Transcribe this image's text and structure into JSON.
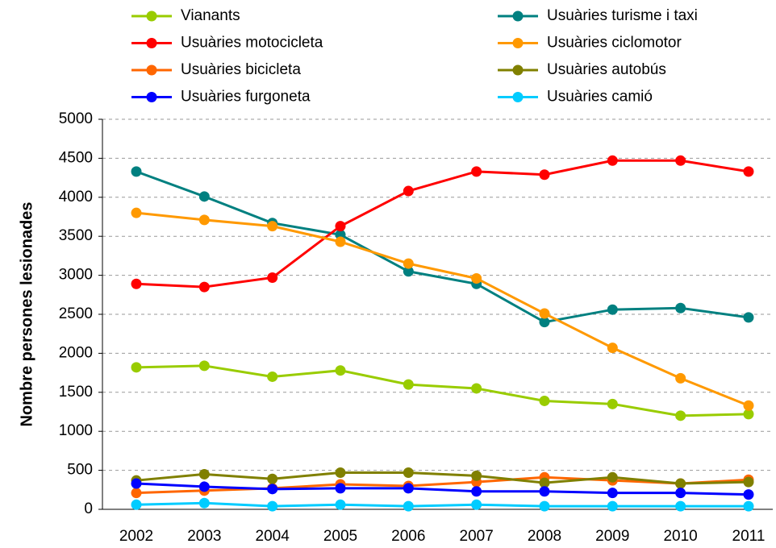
{
  "chart_data": {
    "type": "line",
    "y_label": "Nombre persones lesionades",
    "categories": [
      "2002",
      "2003",
      "2004",
      "2005",
      "2006",
      "2007",
      "2008",
      "2009",
      "2010",
      "2011"
    ],
    "series": [
      {
        "name": "Vianants",
        "color": "#99cc00",
        "values": [
          1820,
          1840,
          1700,
          1780,
          1600,
          1550,
          1390,
          1350,
          1200,
          1220
        ]
      },
      {
        "name": "Usuàries turisme i taxi",
        "color": "#008080",
        "values": [
          4330,
          4010,
          3670,
          3520,
          3050,
          2890,
          2400,
          2560,
          2580,
          2460
        ]
      },
      {
        "name": "Usuàries motocicleta",
        "color": "#ff0000",
        "values": [
          2890,
          2850,
          2970,
          3630,
          4080,
          4330,
          4290,
          4470,
          4470,
          4330
        ]
      },
      {
        "name": "Usuàries ciclomotor",
        "color": "#ff9900",
        "values": [
          3800,
          3710,
          3630,
          3430,
          3150,
          2960,
          2510,
          2070,
          1680,
          1330
        ]
      },
      {
        "name": "Usuàries bicicleta",
        "color": "#ff6600",
        "values": [
          210,
          240,
          270,
          320,
          300,
          350,
          410,
          370,
          330,
          380
        ]
      },
      {
        "name": "Usuàries autobús",
        "color": "#808000",
        "values": [
          370,
          450,
          390,
          470,
          470,
          430,
          340,
          410,
          330,
          350
        ]
      },
      {
        "name": "Usuàries furgoneta",
        "color": "#0000ff",
        "values": [
          330,
          290,
          260,
          270,
          270,
          230,
          230,
          210,
          210,
          190
        ]
      },
      {
        "name": "Usuàries camió",
        "color": "#00ccff",
        "values": [
          60,
          80,
          40,
          60,
          40,
          60,
          40,
          40,
          40,
          40
        ]
      }
    ],
    "ylim": [
      0,
      5000
    ],
    "yticks": [
      0,
      500,
      1000,
      1500,
      2000,
      2500,
      3000,
      3500,
      4000,
      4500,
      5000
    ],
    "grid": true
  }
}
